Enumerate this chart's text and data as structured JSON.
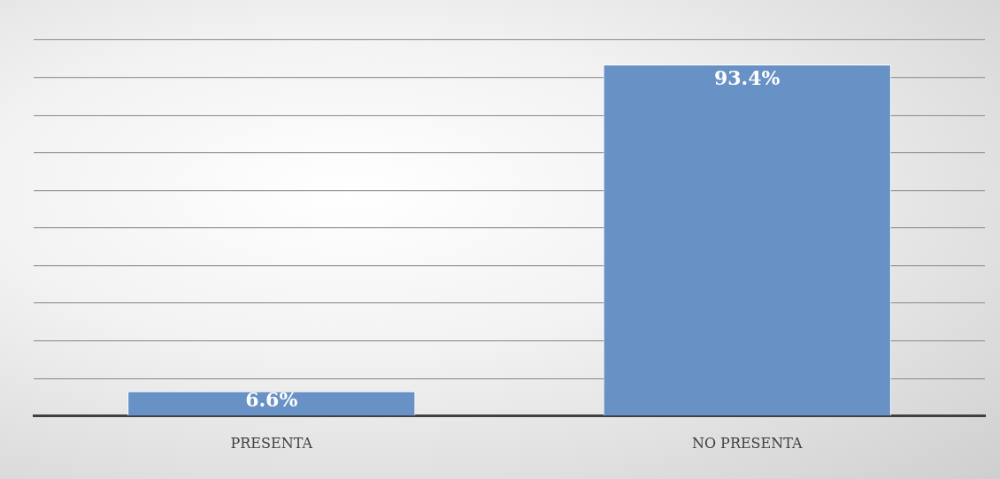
{
  "chart_data": {
    "type": "bar",
    "categories": [
      "PRESENTA",
      "NO PRESENTA"
    ],
    "values": [
      6.6,
      93.4
    ],
    "value_labels": [
      "6.6%",
      "93.4%"
    ],
    "color": "#6891c6",
    "ylim": [
      0,
      100
    ],
    "yticks": [
      0,
      10,
      20,
      30,
      40,
      50,
      60,
      70,
      80,
      90,
      100
    ],
    "tick_labels": "x",
    "grid": "y",
    "legend": false
  }
}
